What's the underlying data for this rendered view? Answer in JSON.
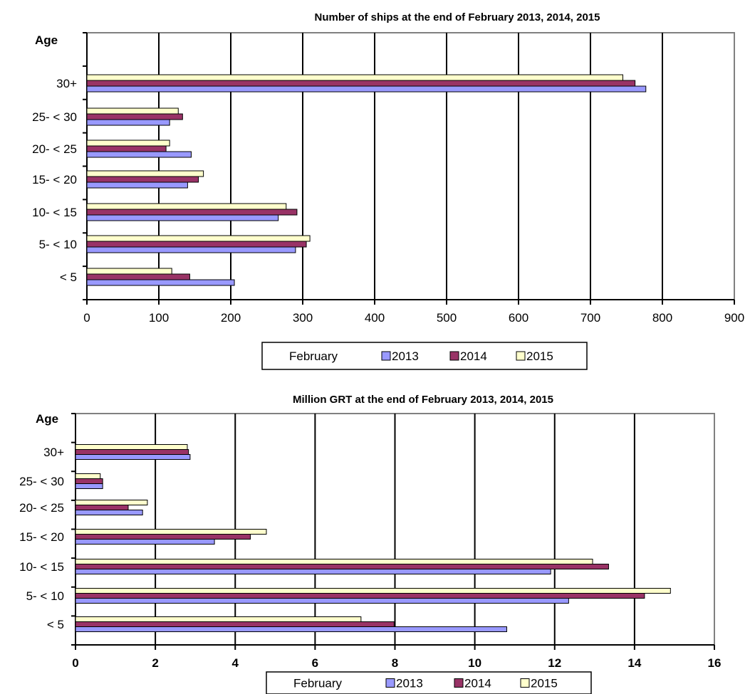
{
  "chart_data": [
    {
      "type": "bar",
      "orientation": "horizontal",
      "title": "Number of ships at the end of February 2013, 2014, 2015",
      "ylabel": "Age",
      "xlabel": "",
      "categories": [
        "< 5",
        "5- < 10",
        "10- < 15",
        "15- < 20",
        "20- < 25",
        "25- < 30",
        "30+"
      ],
      "series": [
        {
          "name": "2013",
          "color": "#9999ff",
          "values": [
            205,
            290,
            266,
            140,
            145,
            115,
            777
          ]
        },
        {
          "name": "2014",
          "color": "#993366",
          "values": [
            143,
            305,
            292,
            155,
            110,
            133,
            762
          ]
        },
        {
          "name": "2015",
          "color": "#ffffcc",
          "values": [
            118,
            310,
            277,
            162,
            115,
            127,
            745
          ]
        }
      ],
      "xlim": [
        0,
        900
      ],
      "xticks": [
        0,
        100,
        200,
        300,
        400,
        500,
        600,
        700,
        800,
        900
      ],
      "grid": "vertical",
      "legend": {
        "title": "February",
        "labels": [
          "2013",
          "2014",
          "2015"
        ],
        "position": "bottom"
      }
    },
    {
      "type": "bar",
      "orientation": "horizontal",
      "title": "Million GRT at the end of February 2013, 2014, 2015",
      "ylabel": "Age",
      "xlabel": "",
      "categories": [
        "< 5",
        "5- < 10",
        "10- < 15",
        "15- < 20",
        "20- < 25",
        "25- < 30",
        "30+"
      ],
      "series": [
        {
          "name": "2013",
          "color": "#9999ff",
          "values": [
            10.8,
            12.35,
            11.9,
            3.48,
            1.68,
            0.68,
            2.87
          ]
        },
        {
          "name": "2014",
          "color": "#993366",
          "values": [
            7.98,
            14.25,
            13.35,
            4.38,
            1.32,
            0.68,
            2.83
          ]
        },
        {
          "name": "2015",
          "color": "#ffffcc",
          "values": [
            7.15,
            14.9,
            12.95,
            4.78,
            1.8,
            0.62,
            2.8
          ]
        }
      ],
      "xlim": [
        0,
        16
      ],
      "xticks": [
        0,
        2,
        4,
        6,
        8,
        10,
        12,
        14,
        16
      ],
      "grid": "vertical",
      "legend": {
        "title": "February",
        "labels": [
          "2013",
          "2014",
          "2015"
        ],
        "position": "bottom"
      }
    }
  ]
}
